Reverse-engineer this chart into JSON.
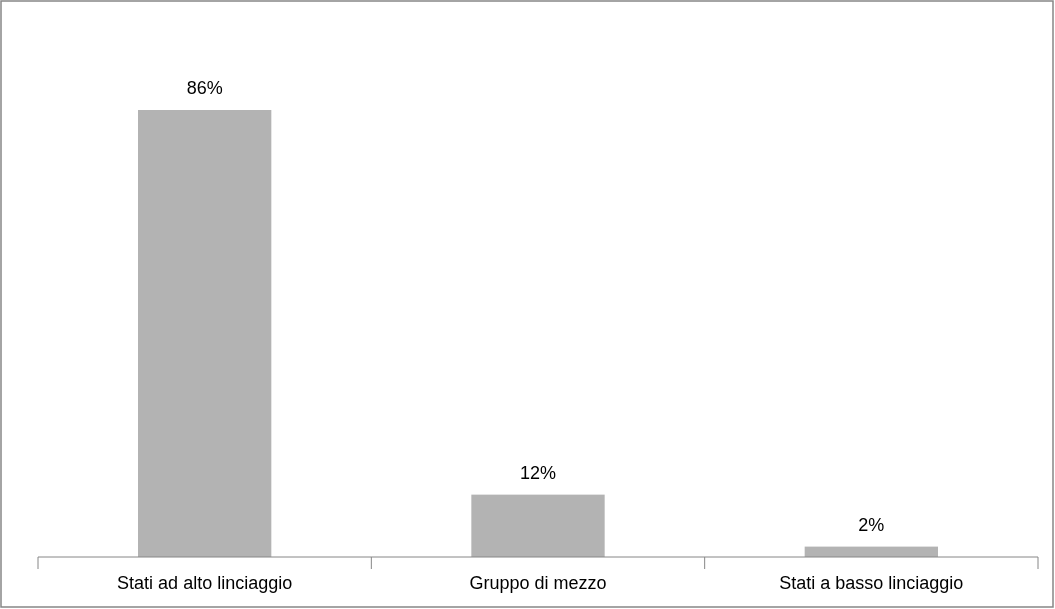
{
  "chart_data": {
    "type": "bar",
    "categories": [
      "Stati ad alto linciaggio",
      "Gruppo di mezzo",
      "Stati a basso linciaggio"
    ],
    "values": [
      86,
      12,
      2
    ],
    "value_labels": [
      "86%",
      "12%",
      "2%"
    ],
    "color": "#b3b3b3"
  }
}
